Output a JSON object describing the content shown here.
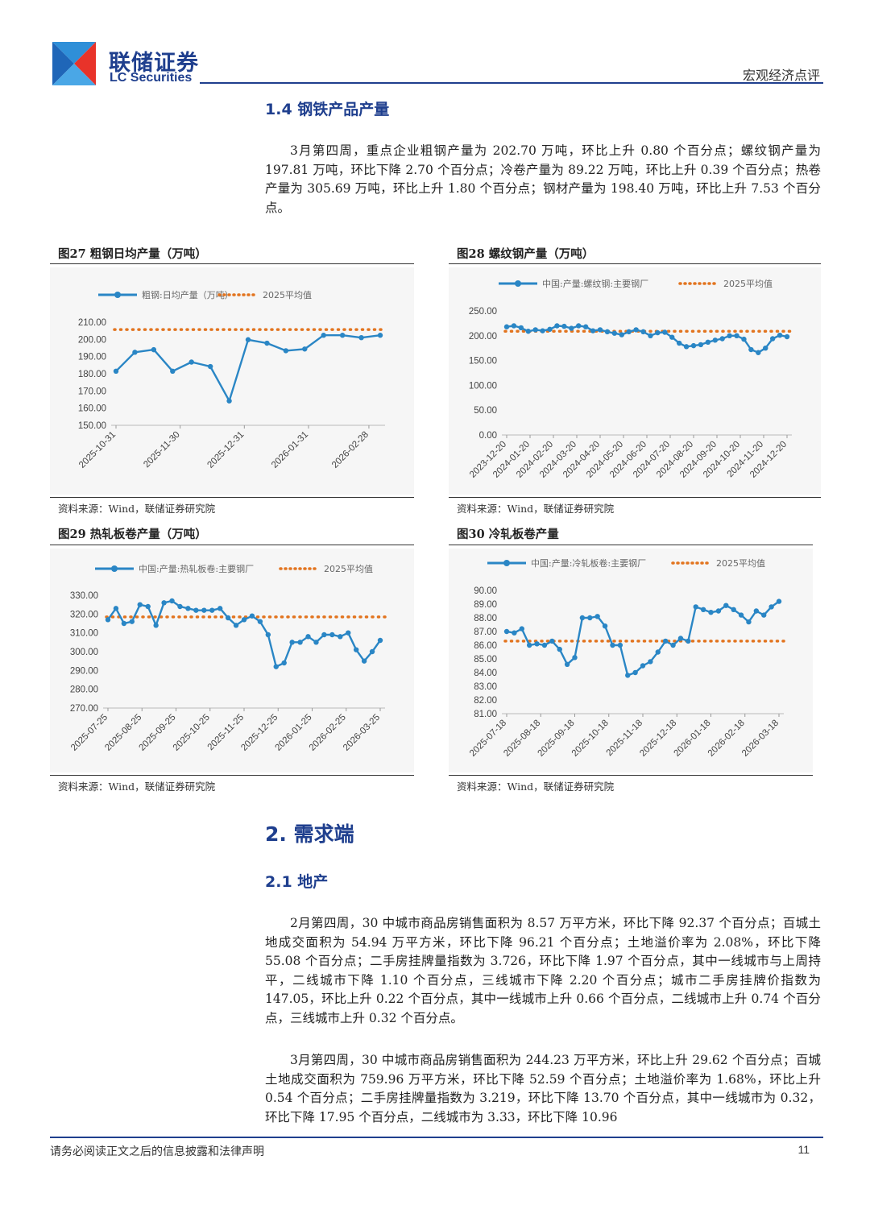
{
  "header": {
    "brand_cn": "联储证券",
    "brand_en": "LC Securities",
    "report_type": "宏观经济点评",
    "colors": {
      "brand_blue": "#1f3f8e",
      "logo_red": "#e8332a",
      "logo_blue": "#2f8fd8"
    }
  },
  "sections": {
    "s1_4_title": "1.4 钢铁产品产量",
    "s1_4_para": "3月第四周，重点企业粗钢产量为 202.70 万吨，环比上升 0.80 个百分点；螺纹钢产量为 197.81 万吨，环比下降 2.70 个百分点；冷卷产量为 89.22 万吨，环比上升 0.39 个百分点；热卷产量为 305.69 万吨，环比上升 1.80 个百分点；钢材产量为 198.40 万吨，环比上升 7.53 个百分点。",
    "s2_title": "2. 需求端",
    "s2_1_title": "2.1 地产",
    "s2_1_para1": "2月第四周，30 中城市商品房销售面积为 8.57 万平方米，环比下降 92.37 个百分点；百城土地成交面积为 54.94 万平方米，环比下降 96.21 个百分点；土地溢价率为 2.08%，环比下降 55.08 个百分点；二手房挂牌量指数为 3.726，环比下降 1.97 个百分点，其中一线城市与上周持平，二线城市下降 1.10 个百分点，三线城市下降 2.20 个百分点；城市二手房挂牌价指数为 147.05，环比上升 0.22 个百分点，其中一线城市上升 0.66 个百分点，二线城市上升 0.74 个百分点，三线城市上升 0.32 个百分点。",
    "s2_1_para2": "3月第四周，30 中城市商品房销售面积为 244.23 万平方米，环比上升 29.62 个百分点；百城土地成交面积为 759.96 万平方米，环比下降 52.59 个百分点；土地溢价率为 1.68%，环比上升 0.54 个百分点；二手房挂牌量指数为 3.219，环比下降 13.70 个百分点，其中一线城市为 0.32，环比下降 17.95 个百分点，二线城市为 3.33，环比下降 10.96"
  },
  "figures": {
    "fig27": {
      "title": "图27 粗钢日均产量（万吨）",
      "source": "资料来源：Wind，联储证券研究院"
    },
    "fig28": {
      "title": "图28 螺纹钢产量（万吨）",
      "source": "资料来源：Wind，联储证券研究院"
    },
    "fig29": {
      "title": "图29 热轧板卷产量（万吨）",
      "source": "资料来源：Wind，联储证券研究院"
    },
    "fig30": {
      "title": "图30 冷轧板卷产量",
      "source": "资料来源：Wind，联储证券研究院"
    }
  },
  "chart_data": [
    {
      "type": "line",
      "title": "图27 粗钢日均产量（万吨）",
      "series": [
        {
          "name": "粗钢:日均产量（万吨）",
          "color": "#2a86c5",
          "values": [
            181.5,
            192.5,
            194.0,
            181.5,
            186.8,
            184.2,
            164.2,
            199.8,
            197.8,
            193.4,
            194.4,
            202.4,
            202.4,
            201.0,
            202.4
          ]
        },
        {
          "name": "2025平均值",
          "color": "#e2741f",
          "style": "dotted",
          "value": 205.7
        }
      ],
      "x_ticks": [
        "2025-10-31",
        "2025-11-30",
        "2025-12-31",
        "2026-01-31",
        "2026-02-28"
      ],
      "x_tick_index": [
        0,
        3.4,
        6.8,
        10.2,
        13.4
      ],
      "y_ticks": [
        "150.00",
        "160.00",
        "170.00",
        "180.00",
        "190.00",
        "200.00",
        "210.00"
      ],
      "ylim": [
        150,
        210
      ],
      "grid": false,
      "legend": "top"
    },
    {
      "type": "line",
      "title": "图28 螺纹钢产量（万吨）",
      "series": [
        {
          "name": "中国:产量:螺纹钢:主要钢厂",
          "color": "#2a86c5",
          "values": [
            218,
            220,
            216,
            209,
            212,
            210,
            213,
            220,
            219,
            215,
            220,
            218,
            210,
            212,
            208,
            205,
            202,
            208,
            212,
            208,
            200,
            206,
            207,
            197,
            185,
            178,
            180,
            182,
            187,
            191,
            194,
            200,
            200,
            193,
            172,
            166,
            175,
            194,
            201,
            198
          ],
          "marker_step": 1
        },
        {
          "name": "2025平均值",
          "color": "#e2741f",
          "style": "dotted",
          "value": 209
        }
      ],
      "x_ticks": [
        "2023-12-20",
        "2024-01-20",
        "2024-02-20",
        "2024-03-20",
        "2024-04-20",
        "2024-05-20",
        "2024-06-20",
        "2024-07-20",
        "2024-08-20",
        "2024-09-20",
        "2024-10-20",
        "2024-11-20",
        "2024-12-20"
      ],
      "y_ticks": [
        "0.00",
        "50.00",
        "100.00",
        "150.00",
        "200.00",
        "250.00"
      ],
      "ylim": [
        0,
        250
      ],
      "grid": false,
      "legend": "top"
    },
    {
      "type": "line",
      "title": "图29 热轧板卷产量（万吨）",
      "series": [
        {
          "name": "中国:产量:热轧板卷:主要钢厂",
          "color": "#2a86c5",
          "values": [
            317,
            323,
            315,
            316,
            325,
            324,
            314,
            326,
            327,
            324,
            323,
            322,
            322,
            322,
            323,
            318,
            314,
            317,
            319,
            316,
            309,
            292,
            294,
            305,
            305,
            308,
            305,
            309,
            309,
            308,
            310,
            301,
            295,
            300,
            306
          ]
        },
        {
          "name": "2025平均值",
          "color": "#e2741f",
          "style": "dotted",
          "value": 318.5
        }
      ],
      "x_ticks": [
        "2025-07-25",
        "2025-08-25",
        "2025-09-25",
        "2025-10-25",
        "2025-11-25",
        "2025-12-25",
        "2026-01-25",
        "2026-02-25",
        "2026-03-25"
      ],
      "y_ticks": [
        "270.00",
        "280.00",
        "290.00",
        "300.00",
        "310.00",
        "320.00",
        "330.00"
      ],
      "ylim": [
        270,
        330
      ],
      "grid": false,
      "legend": "top"
    },
    {
      "type": "line",
      "title": "图30 冷轧板卷产量",
      "series": [
        {
          "name": "中国:产量:冷轧板卷:主要钢厂",
          "color": "#2a86c5",
          "values": [
            87.0,
            86.9,
            87.2,
            86.0,
            86.1,
            86.0,
            86.3,
            85.7,
            84.6,
            85.1,
            88.0,
            88.0,
            88.1,
            87.4,
            86.0,
            86.0,
            83.8,
            84.0,
            84.5,
            84.8,
            85.5,
            86.3,
            86.0,
            86.5,
            86.3,
            88.8,
            88.6,
            88.4,
            88.5,
            88.9,
            88.6,
            88.2,
            87.7,
            88.5,
            88.2,
            88.8,
            89.2
          ]
        },
        {
          "name": "2025平均值",
          "color": "#e2741f",
          "style": "dotted",
          "value": 86.3
        }
      ],
      "x_ticks": [
        "2025-07-18",
        "2025-08-18",
        "2025-09-18",
        "2025-10-18",
        "2025-11-18",
        "2025-12-18",
        "2026-01-18",
        "2026-02-18",
        "2026-03-18"
      ],
      "y_ticks": [
        "81.00",
        "82.00",
        "83.00",
        "84.00",
        "85.00",
        "86.00",
        "87.00",
        "88.00",
        "89.00",
        "90.00"
      ],
      "ylim": [
        81,
        90
      ],
      "grid": false,
      "legend": "top"
    }
  ],
  "footer": {
    "disclaimer": "请务必阅读正文之后的信息披露和法律声明",
    "page_number": "11"
  }
}
